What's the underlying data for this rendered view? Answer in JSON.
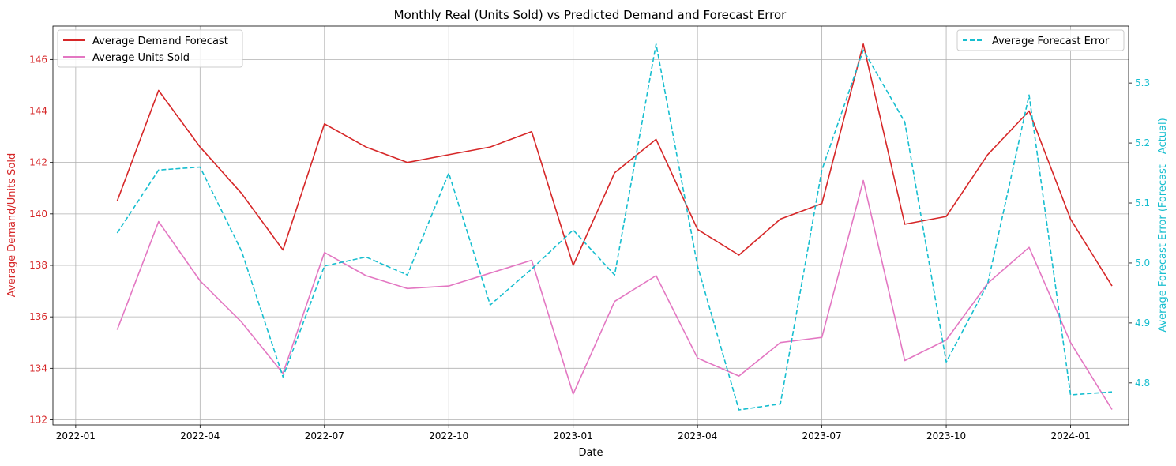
{
  "chart_data": {
    "type": "line",
    "title": "Monthly Real (Units Sold) vs Predicted Demand and Forecast Error",
    "xlabel": "Date",
    "ylabel_left": "Average Demand/Units Sold",
    "ylabel_right": "Average Forecast Error (Forecast - Actual)",
    "grid": true,
    "x": [
      "2022-02",
      "2022-03",
      "2022-04",
      "2022-05",
      "2022-06",
      "2022-07",
      "2022-08",
      "2022-09",
      "2022-10",
      "2022-11",
      "2022-12",
      "2023-01",
      "2023-02",
      "2023-03",
      "2023-04",
      "2023-05",
      "2023-06",
      "2023-07",
      "2023-08",
      "2023-09",
      "2023-10",
      "2023-11",
      "2023-12",
      "2024-01",
      "2024-02"
    ],
    "x_ticks": [
      "2022-01",
      "2022-04",
      "2022-07",
      "2022-10",
      "2023-01",
      "2023-04",
      "2023-07",
      "2023-10",
      "2024-01"
    ],
    "y_left_ticks": [
      132,
      134,
      136,
      138,
      140,
      142,
      144,
      146
    ],
    "y_left_lim": [
      131.8,
      147.3
    ],
    "y_right_ticks": [
      4.8,
      4.9,
      5.0,
      5.1,
      5.2,
      5.3
    ],
    "y_right_lim": [
      4.73,
      5.395
    ],
    "colors": {
      "demand": "#d62728",
      "units": "#e377c2",
      "error": "#17becf",
      "left_axis": "#d62728",
      "right_axis": "#17becf",
      "grid": "#b0b0b0"
    },
    "series": [
      {
        "name": "Average Demand Forecast",
        "axis": "left",
        "values": [
          140.5,
          144.8,
          142.6,
          140.8,
          138.6,
          143.5,
          142.6,
          142.0,
          142.3,
          142.6,
          143.2,
          138.0,
          141.6,
          142.9,
          139.4,
          138.4,
          139.8,
          140.4,
          146.6,
          139.6,
          139.9,
          142.3,
          144.0,
          139.8,
          137.2
        ]
      },
      {
        "name": "Average Units Sold",
        "axis": "left",
        "values": [
          135.5,
          139.7,
          137.4,
          135.8,
          133.8,
          138.5,
          137.6,
          137.1,
          137.2,
          137.7,
          138.2,
          133.0,
          136.6,
          137.6,
          134.4,
          133.7,
          135.0,
          135.2,
          141.3,
          134.3,
          135.1,
          137.3,
          138.7,
          135.0,
          132.4
        ]
      },
      {
        "name": "Average Forecast Error",
        "axis": "right",
        "dashed": true,
        "values": [
          5.05,
          5.155,
          5.16,
          5.02,
          4.81,
          4.995,
          5.01,
          4.98,
          5.15,
          4.93,
          4.99,
          5.055,
          4.98,
          5.365,
          4.995,
          4.755,
          4.765,
          5.155,
          5.355,
          5.235,
          4.835,
          4.965,
          5.28,
          4.78,
          4.785
        ]
      }
    ],
    "legend_left": [
      "Average Demand Forecast",
      "Average Units Sold"
    ],
    "legend_right": [
      "Average Forecast Error"
    ],
    "legend_left_placement": "top-left",
    "legend_right_placement": "top-right"
  }
}
